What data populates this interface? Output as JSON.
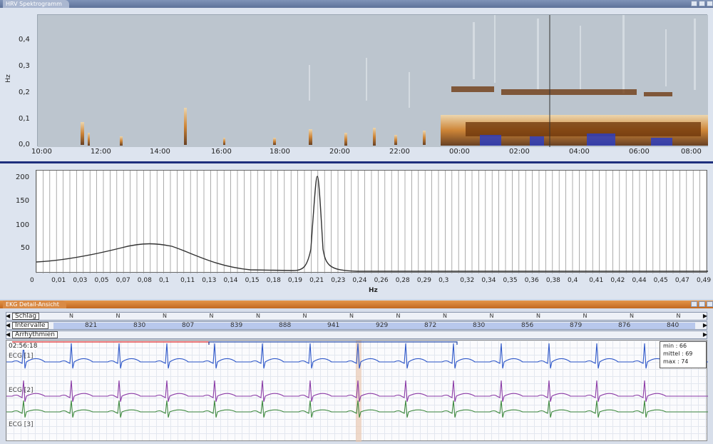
{
  "spectrogram": {
    "title": "HRV Spektrogramm",
    "ylabel": "Hz",
    "yticks": [
      "0,4",
      "0,3",
      "0,2",
      "0,1",
      "0,0"
    ],
    "xticks": [
      "10:00",
      "12:00",
      "14:00",
      "16:00",
      "18:00",
      "20:00",
      "22:00",
      "00:00",
      "02:00",
      "04:00",
      "06:00",
      "08:00"
    ]
  },
  "psd": {
    "xlabel": "Hz",
    "yticks": [
      "200",
      "150",
      "100",
      "50"
    ],
    "xticks": [
      "0",
      "0,01",
      "0,03",
      "0,05",
      "0,07",
      "0,08",
      "0,1",
      "0,11",
      "0,13",
      "0,14",
      "0,15",
      "0,18",
      "0,19",
      "0,21",
      "0,23",
      "0,24",
      "0,26",
      "0,28",
      "0,29",
      "0,3",
      "0,32",
      "0,34",
      "0,35",
      "0,36",
      "0,38",
      "0,4",
      "0,41",
      "0,42",
      "0,44",
      "0,45",
      "0,47",
      "0,49"
    ]
  },
  "ecg": {
    "title": "EKG Detail-Ansicht",
    "beat_label": "Schlag",
    "interval_label": "Intervalle",
    "arrhythmia_label": "Arrhythmien",
    "beat_marker": "N",
    "intervals": [
      "821",
      "830",
      "807",
      "839",
      "888",
      "941",
      "929",
      "872",
      "830",
      "856",
      "879",
      "876",
      "840"
    ],
    "time": "02:56:18",
    "leads": [
      "ECG [1]",
      "ECG [2]",
      "ECG [3]"
    ],
    "min": "min : 66",
    "mittel": "mittel : 69",
    "max": "max : 74"
  },
  "colors": {
    "accent_blue": "#1e2f7d",
    "ecg1": "#2f58c9",
    "ecg2": "#8a3aa6",
    "ecg3": "#3f8a3f",
    "spec_hot": "#c8660e"
  }
}
